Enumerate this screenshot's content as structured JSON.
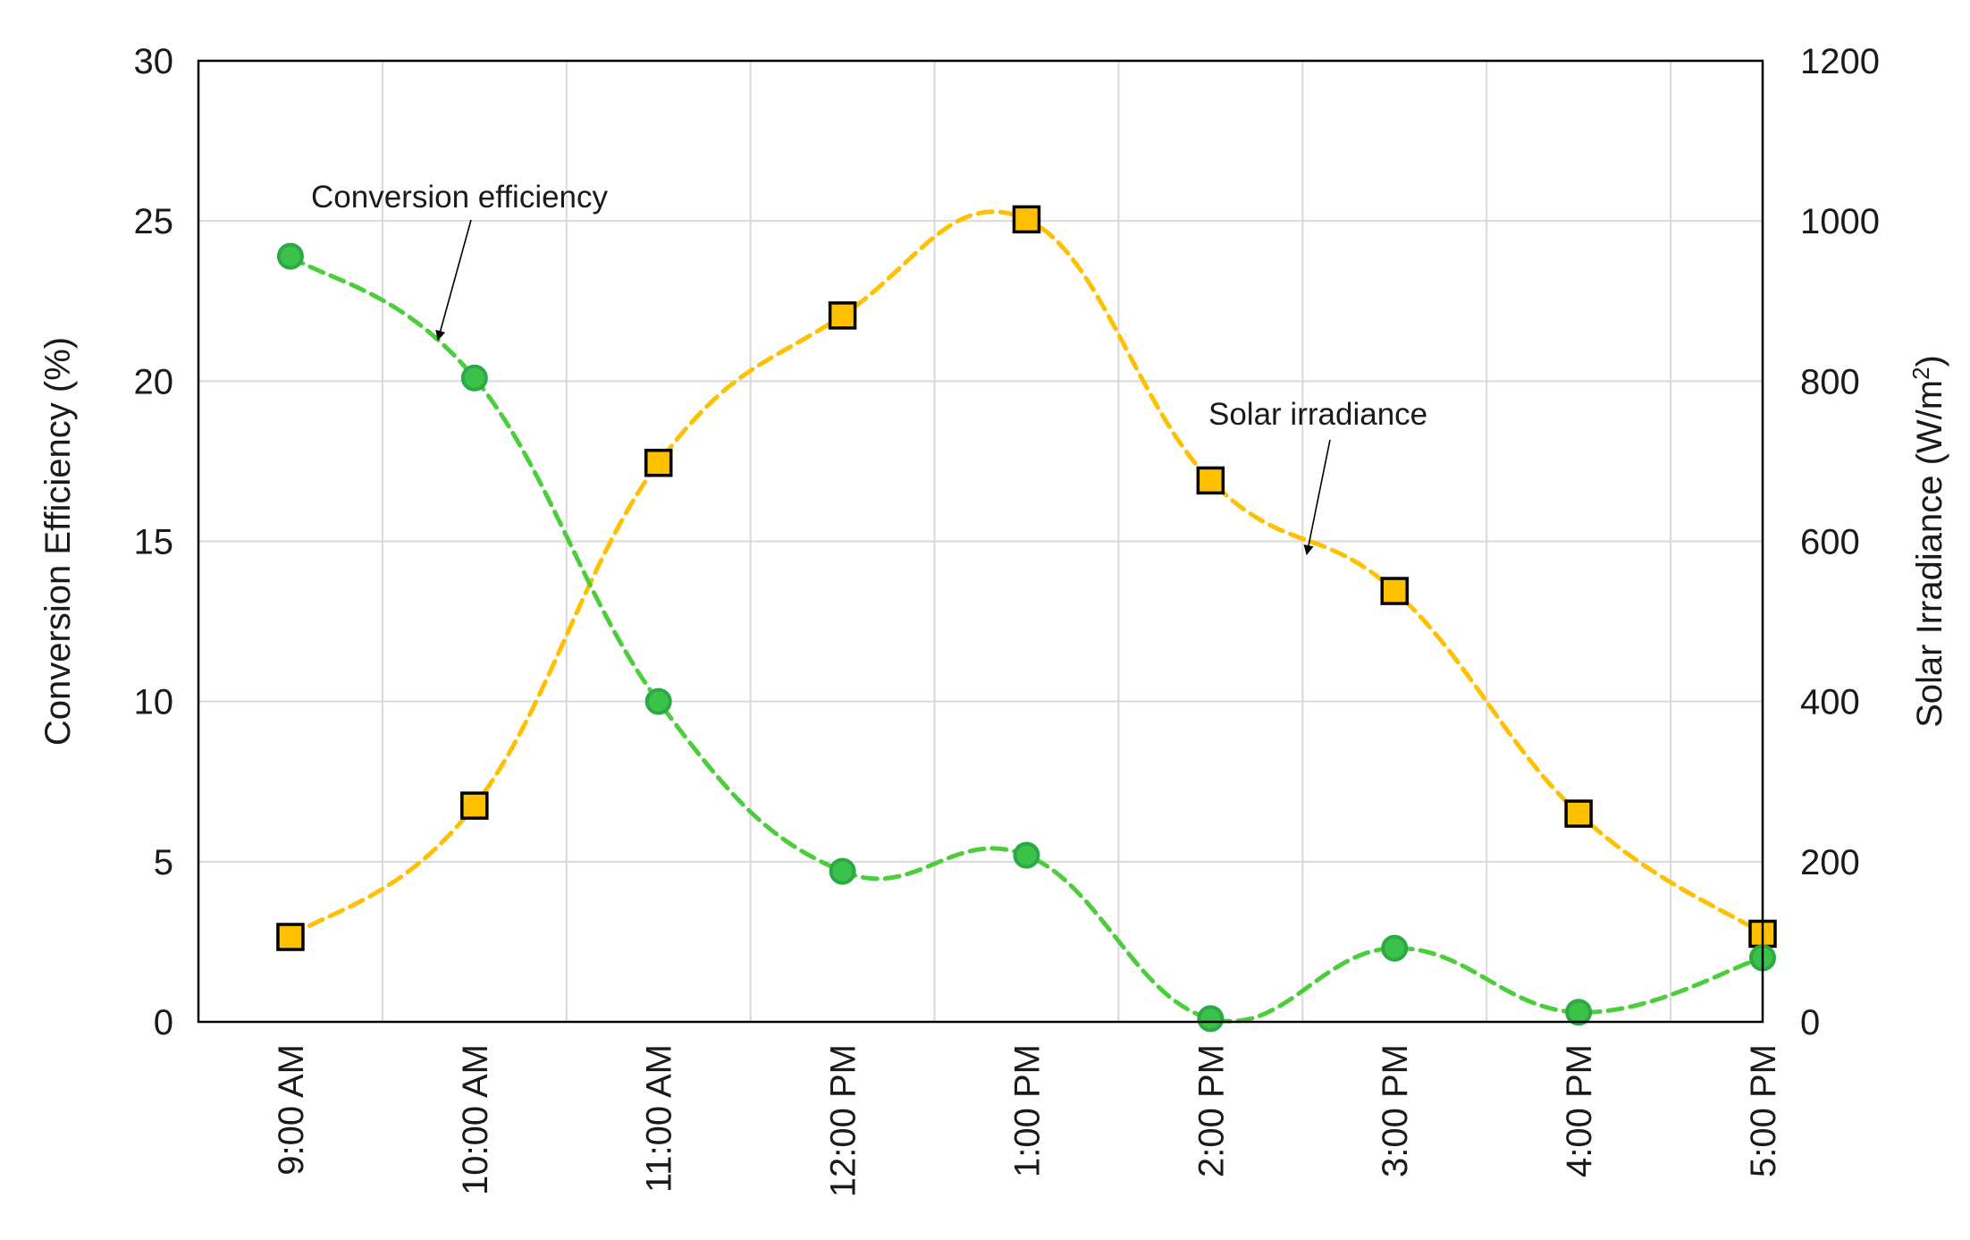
{
  "chart_data": {
    "type": "line",
    "categories": [
      "9:00 AM",
      "10:00 AM",
      "11:00 AM",
      "12:00 PM",
      "1:00 PM",
      "2:00 PM",
      "3:00 PM",
      "4:00 PM",
      "5:00 PM"
    ],
    "series": [
      {
        "name": "Conversion efficiency",
        "axis": "left",
        "marker": "circle",
        "color": "#4ccd3c",
        "marker_fill": "#3bc24a",
        "marker_edge": "#2ea844",
        "values": [
          23.9,
          20.1,
          10.0,
          4.7,
          5.2,
          0.1,
          2.3,
          0.3,
          2.0
        ]
      },
      {
        "name": "Solar irradiance",
        "axis": "right",
        "marker": "square",
        "color": "#ffc000",
        "marker_fill": "#ffc000",
        "marker_edge": "#000000",
        "values": [
          106,
          270,
          698,
          882,
          1002,
          676,
          538,
          260,
          110
        ]
      }
    ],
    "ylabel": "Conversion Efficiency (%)",
    "y2label": {
      "main": "Solar Irradiance (W/m",
      "sup": "2",
      "close": ")"
    },
    "ylim": [
      0,
      30
    ],
    "y2lim": [
      0,
      1200
    ],
    "yticks": [
      0,
      5,
      10,
      15,
      20,
      25,
      30
    ],
    "y2ticks": [
      0,
      200,
      400,
      600,
      800,
      1000,
      1200
    ],
    "grid": true,
    "annotations": {
      "efficiency": "Conversion efficiency",
      "irradiance": "Solar irradiance"
    }
  }
}
